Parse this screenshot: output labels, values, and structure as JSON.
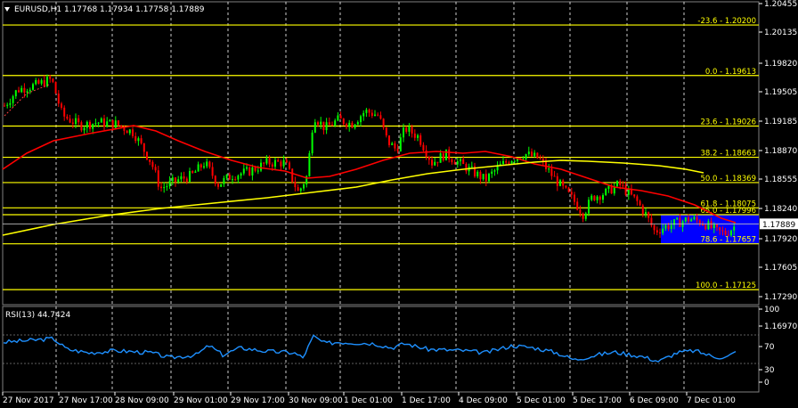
{
  "header": {
    "menu_icon": "triangle-down-icon",
    "symbol_info": "EURUSD,H1  1.17768 1.17934 1.17758 1.17889"
  },
  "rsi_header": "RSI(13) 44.7424",
  "colors": {
    "background": "#000000",
    "grid": "#ffffff",
    "fib": "#ffff00",
    "ma_fast": "#ff0000",
    "ma_slow": "#ffff00",
    "bull": "#00ff00",
    "bear": "#ff0000",
    "rsi": "#1e90ff",
    "highlight": "#0000ff"
  },
  "price_scale": [
    "1.20455",
    "1.20135",
    "1.19820",
    "1.19505",
    "1.19185",
    "1.18870",
    "1.18555",
    "1.18240",
    "1.17920",
    "1.17605",
    "1.17290",
    "1.16970"
  ],
  "current_price": "1.17889",
  "fib_levels": [
    {
      "label": "-23.6 - 1.20200",
      "price": 1.202
    },
    {
      "label": "0.0 - 1.19613",
      "price": 1.19613
    },
    {
      "label": "23.6 - 1.19026",
      "price": 1.19026
    },
    {
      "label": "38.2 - 1.18663",
      "price": 1.18663
    },
    {
      "label": "50.0 - 1.18369",
      "price": 1.18369
    },
    {
      "label": "61.8 - 1.18075",
      "price": 1.18075
    },
    {
      "label": "65.0 - 1.17996",
      "price": 1.17996
    },
    {
      "label": "78.6 - 1.17657",
      "price": 1.17657
    },
    {
      "label": "100.0 - 1.17125",
      "price": 1.17125
    }
  ],
  "rsi_scale": [
    "100",
    "70",
    "30",
    "0"
  ],
  "time_labels": [
    "27 Nov 2017",
    "27 Nov 17:00",
    "28 Nov 09:00",
    "29 Nov 01:00",
    "29 Nov 17:00",
    "30 Nov 09:00",
    "1 Dec 01:00",
    "1 Dec 17:00",
    "4 Dec 09:00",
    "5 Dec 01:00",
    "5 Dec 17:00",
    "6 Dec 09:00",
    "7 Dec 01:00"
  ]
}
